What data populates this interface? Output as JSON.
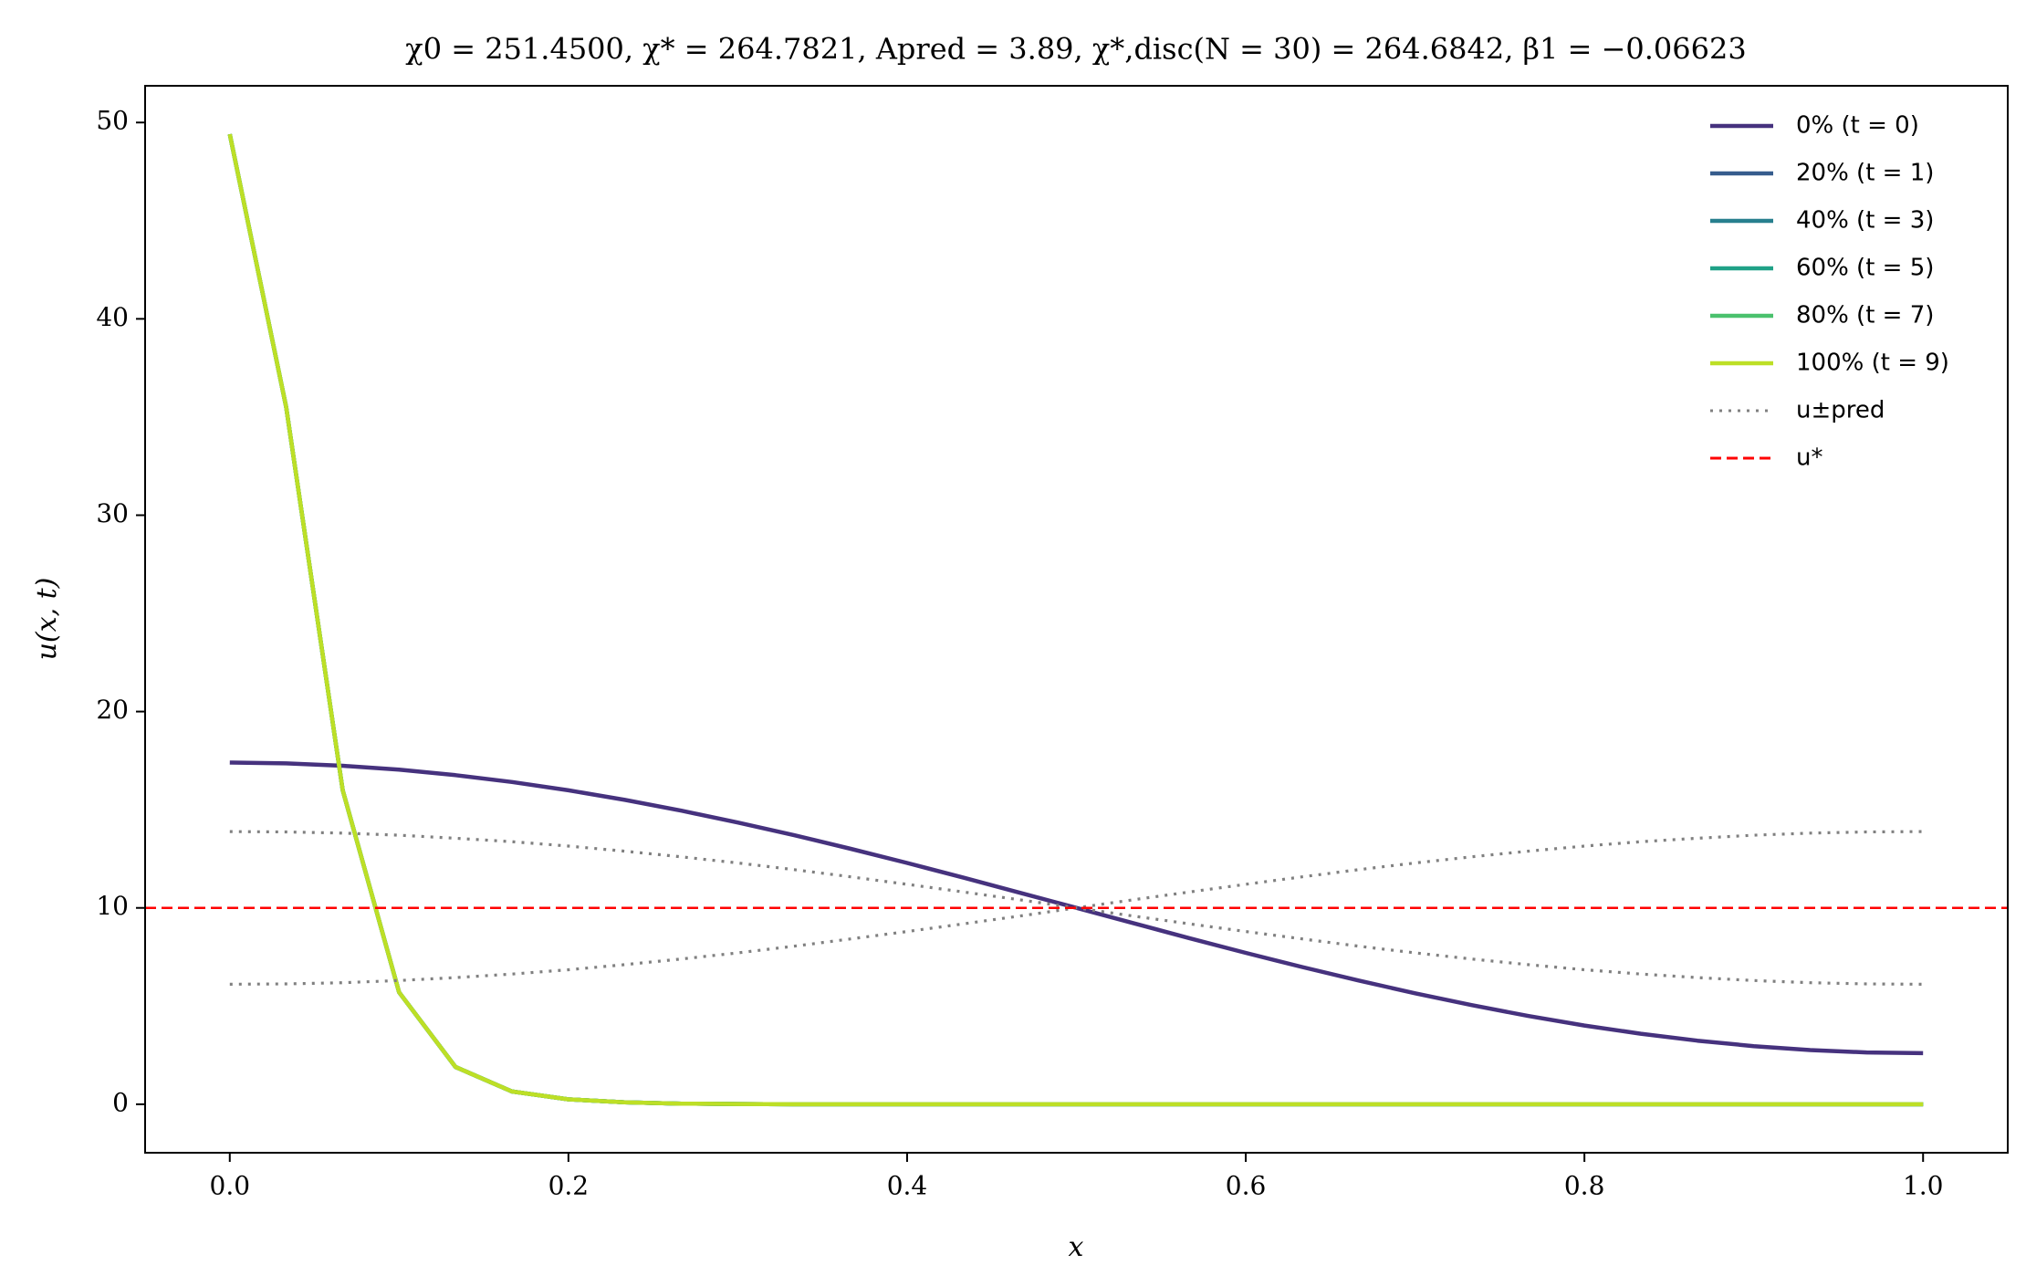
{
  "chart_data": {
    "type": "line",
    "title": "χ0 = 251.4500,  χ* = 264.7821,  Apred = 3.89,  χ*,disc(N = 30) = 264.6842,  β1 = −0.06623",
    "xlabel": "x",
    "ylabel": "u(x, t)",
    "x": [
      0,
      0.0333,
      0.0667,
      0.1,
      0.1333,
      0.1667,
      0.2,
      0.2333,
      0.2667,
      0.3,
      0.3333,
      0.3667,
      0.4,
      0.4333,
      0.4667,
      0.5,
      0.5333,
      0.5667,
      0.6,
      0.6333,
      0.6667,
      0.7,
      0.7333,
      0.7667,
      0.8,
      0.8333,
      0.8667,
      0.9,
      0.9333,
      0.9667,
      1
    ],
    "series": [
      {
        "name": "0% (t = 0)",
        "color": "#46327e",
        "style": "solid",
        "values": [
          17.4,
          17.36,
          17.24,
          17.04,
          16.76,
          16.41,
          15.99,
          15.5,
          14.95,
          14.35,
          13.7,
          13.01,
          12.29,
          11.54,
          10.77,
          10,
          9.23,
          8.46,
          7.71,
          6.99,
          6.3,
          5.65,
          5.05,
          4.5,
          4.01,
          3.59,
          3.24,
          2.96,
          2.76,
          2.64,
          2.6
        ]
      },
      {
        "name": "20% (t = 1)",
        "color": "#365c8d",
        "style": "solid",
        "values": [
          49.4,
          35.5,
          16,
          5.7,
          1.9,
          0.65,
          0.25,
          0.1,
          0.03,
          0.01,
          0,
          0,
          0,
          0,
          0,
          0,
          0,
          0,
          0,
          0,
          0,
          0,
          0,
          0,
          0,
          0,
          0,
          0,
          0,
          0,
          0
        ]
      },
      {
        "name": "40% (t = 3)",
        "color": "#277f8e",
        "style": "solid",
        "values": [
          49.4,
          35.5,
          16,
          5.7,
          1.9,
          0.65,
          0.25,
          0.1,
          0.03,
          0.01,
          0,
          0,
          0,
          0,
          0,
          0,
          0,
          0,
          0,
          0,
          0,
          0,
          0,
          0,
          0,
          0,
          0,
          0,
          0,
          0,
          0
        ]
      },
      {
        "name": "60% (t = 5)",
        "color": "#1fa187",
        "style": "solid",
        "values": [
          49.4,
          35.5,
          16,
          5.7,
          1.9,
          0.65,
          0.25,
          0.1,
          0.03,
          0.01,
          0,
          0,
          0,
          0,
          0,
          0,
          0,
          0,
          0,
          0,
          0,
          0,
          0,
          0,
          0,
          0,
          0,
          0,
          0,
          0,
          0
        ]
      },
      {
        "name": "80% (t = 7)",
        "color": "#4ac16d",
        "style": "solid",
        "values": [
          49.4,
          35.5,
          16,
          5.7,
          1.9,
          0.65,
          0.25,
          0.1,
          0.03,
          0.01,
          0,
          0,
          0,
          0,
          0,
          0,
          0,
          0,
          0,
          0,
          0,
          0,
          0,
          0,
          0,
          0,
          0,
          0,
          0,
          0,
          0
        ]
      },
      {
        "name": "100% (t = 9)",
        "color": "#bddf26",
        "style": "solid",
        "values": [
          49.4,
          35.5,
          16,
          5.7,
          1.9,
          0.65,
          0.25,
          0.1,
          0.03,
          0.01,
          0,
          0,
          0,
          0,
          0,
          0,
          0,
          0,
          0,
          0,
          0,
          0,
          0,
          0,
          0,
          0,
          0,
          0,
          0,
          0,
          0
        ]
      },
      {
        "name": "u±pred",
        "color": "#808080",
        "style": "dotted",
        "values": [
          13.89,
          13.87,
          13.81,
          13.7,
          13.55,
          13.37,
          13.15,
          12.89,
          12.6,
          12.29,
          11.95,
          11.58,
          11.2,
          10.81,
          10.41,
          10,
          9.59,
          9.19,
          8.8,
          8.42,
          8.05,
          7.71,
          7.4,
          7.11,
          6.85,
          6.63,
          6.45,
          6.3,
          6.19,
          6.13,
          6.11
        ]
      },
      {
        "color": "#808080",
        "style": "dotted",
        "values": [
          6.11,
          6.13,
          6.19,
          6.3,
          6.45,
          6.63,
          6.85,
          7.11,
          7.4,
          7.71,
          8.05,
          8.42,
          8.8,
          9.19,
          9.59,
          10,
          10.41,
          10.81,
          11.2,
          11.58,
          11.95,
          12.29,
          12.6,
          12.89,
          13.15,
          13.37,
          13.55,
          13.7,
          13.81,
          13.87,
          13.89
        ]
      }
    ],
    "reference_line": {
      "name": "u*",
      "value": 10,
      "color": "#ff0000",
      "style": "dashed"
    },
    "xlim": [
      -0.05,
      1.05
    ],
    "ylim": [
      -2.47,
      51.87
    ],
    "xticks": [
      {
        "value": 0,
        "label": "0.0"
      },
      0.2,
      0.4,
      0.6,
      0.8,
      {
        "value": 1,
        "label": "1.0"
      }
    ],
    "yticks": [
      0,
      10,
      20,
      30,
      40,
      50
    ],
    "legend": "upper right",
    "grid": false
  }
}
